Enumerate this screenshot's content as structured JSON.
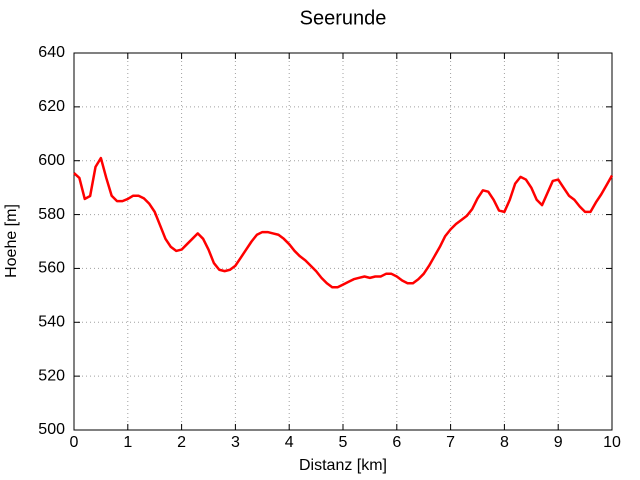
{
  "chart_data": {
    "type": "line",
    "title": "Seerunde",
    "x_label": "Distanz [km]",
    "y_label": "Hoehe [m]",
    "color": "#ff0000",
    "x": [
      0,
      0.1,
      0.2,
      0.3,
      0.4,
      0.5,
      0.6,
      0.7,
      0.8,
      0.9,
      1.0,
      1.1,
      1.2,
      1.3,
      1.4,
      1.5,
      1.6,
      1.7,
      1.8,
      1.9,
      2.0,
      2.1,
      2.2,
      2.3,
      2.4,
      2.5,
      2.6,
      2.7,
      2.8,
      2.9,
      3.0,
      3.1,
      3.2,
      3.3,
      3.4,
      3.5,
      3.6,
      3.7,
      3.8,
      3.9,
      4.0,
      4.1,
      4.2,
      4.3,
      4.4,
      4.5,
      4.6,
      4.7,
      4.8,
      4.9,
      5.0,
      5.1,
      5.2,
      5.3,
      5.4,
      5.5,
      5.6,
      5.7,
      5.8,
      5.9,
      6.0,
      6.1,
      6.2,
      6.3,
      6.4,
      6.5,
      6.6,
      6.7,
      6.8,
      6.9,
      7.0,
      7.1,
      7.2,
      7.3,
      7.4,
      7.5,
      7.6,
      7.7,
      7.8,
      7.9,
      8.0,
      8.1,
      8.2,
      8.3,
      8.4,
      8.5,
      8.6,
      8.7,
      8.8,
      8.9,
      9.0,
      9.1,
      9.2,
      9.3,
      9.4,
      9.5,
      9.6,
      9.7,
      9.8,
      9.9,
      10
    ],
    "values": [
      595.4,
      593.6,
      585.8,
      586.9,
      597.7,
      601,
      593.6,
      587,
      585,
      585,
      585.8,
      587,
      587,
      586,
      584,
      581,
      576,
      571,
      568,
      566.5,
      567,
      569,
      571,
      573,
      571,
      567,
      562,
      559.5,
      559,
      559.5,
      561,
      564,
      567,
      570,
      572.5,
      573.5,
      573.5,
      573,
      572.5,
      571,
      569,
      566.5,
      564.5,
      563,
      561,
      559,
      556.5,
      554.5,
      553,
      553,
      554,
      555,
      556,
      556.5,
      557,
      556.5,
      557,
      557,
      558,
      558,
      557,
      555.5,
      554.5,
      554.5,
      556,
      558,
      561,
      564.5,
      568,
      572,
      574.5,
      576.5,
      578,
      579.5,
      582,
      586,
      589,
      588.5,
      585.5,
      581.5,
      581,
      585.5,
      591.5,
      594,
      593,
      590,
      585.5,
      583.5,
      588,
      592.5,
      593,
      590,
      587,
      585.5,
      583,
      581,
      581,
      584.5,
      587.5,
      591,
      594.5
    ],
    "xlim": [
      0,
      10
    ],
    "xticks": [
      0,
      1,
      2,
      3,
      4,
      5,
      6,
      7,
      8,
      9,
      10
    ],
    "ylim": [
      500,
      640
    ],
    "yticks": [
      500,
      520,
      540,
      560,
      580,
      600,
      620,
      640
    ],
    "grid": true
  }
}
